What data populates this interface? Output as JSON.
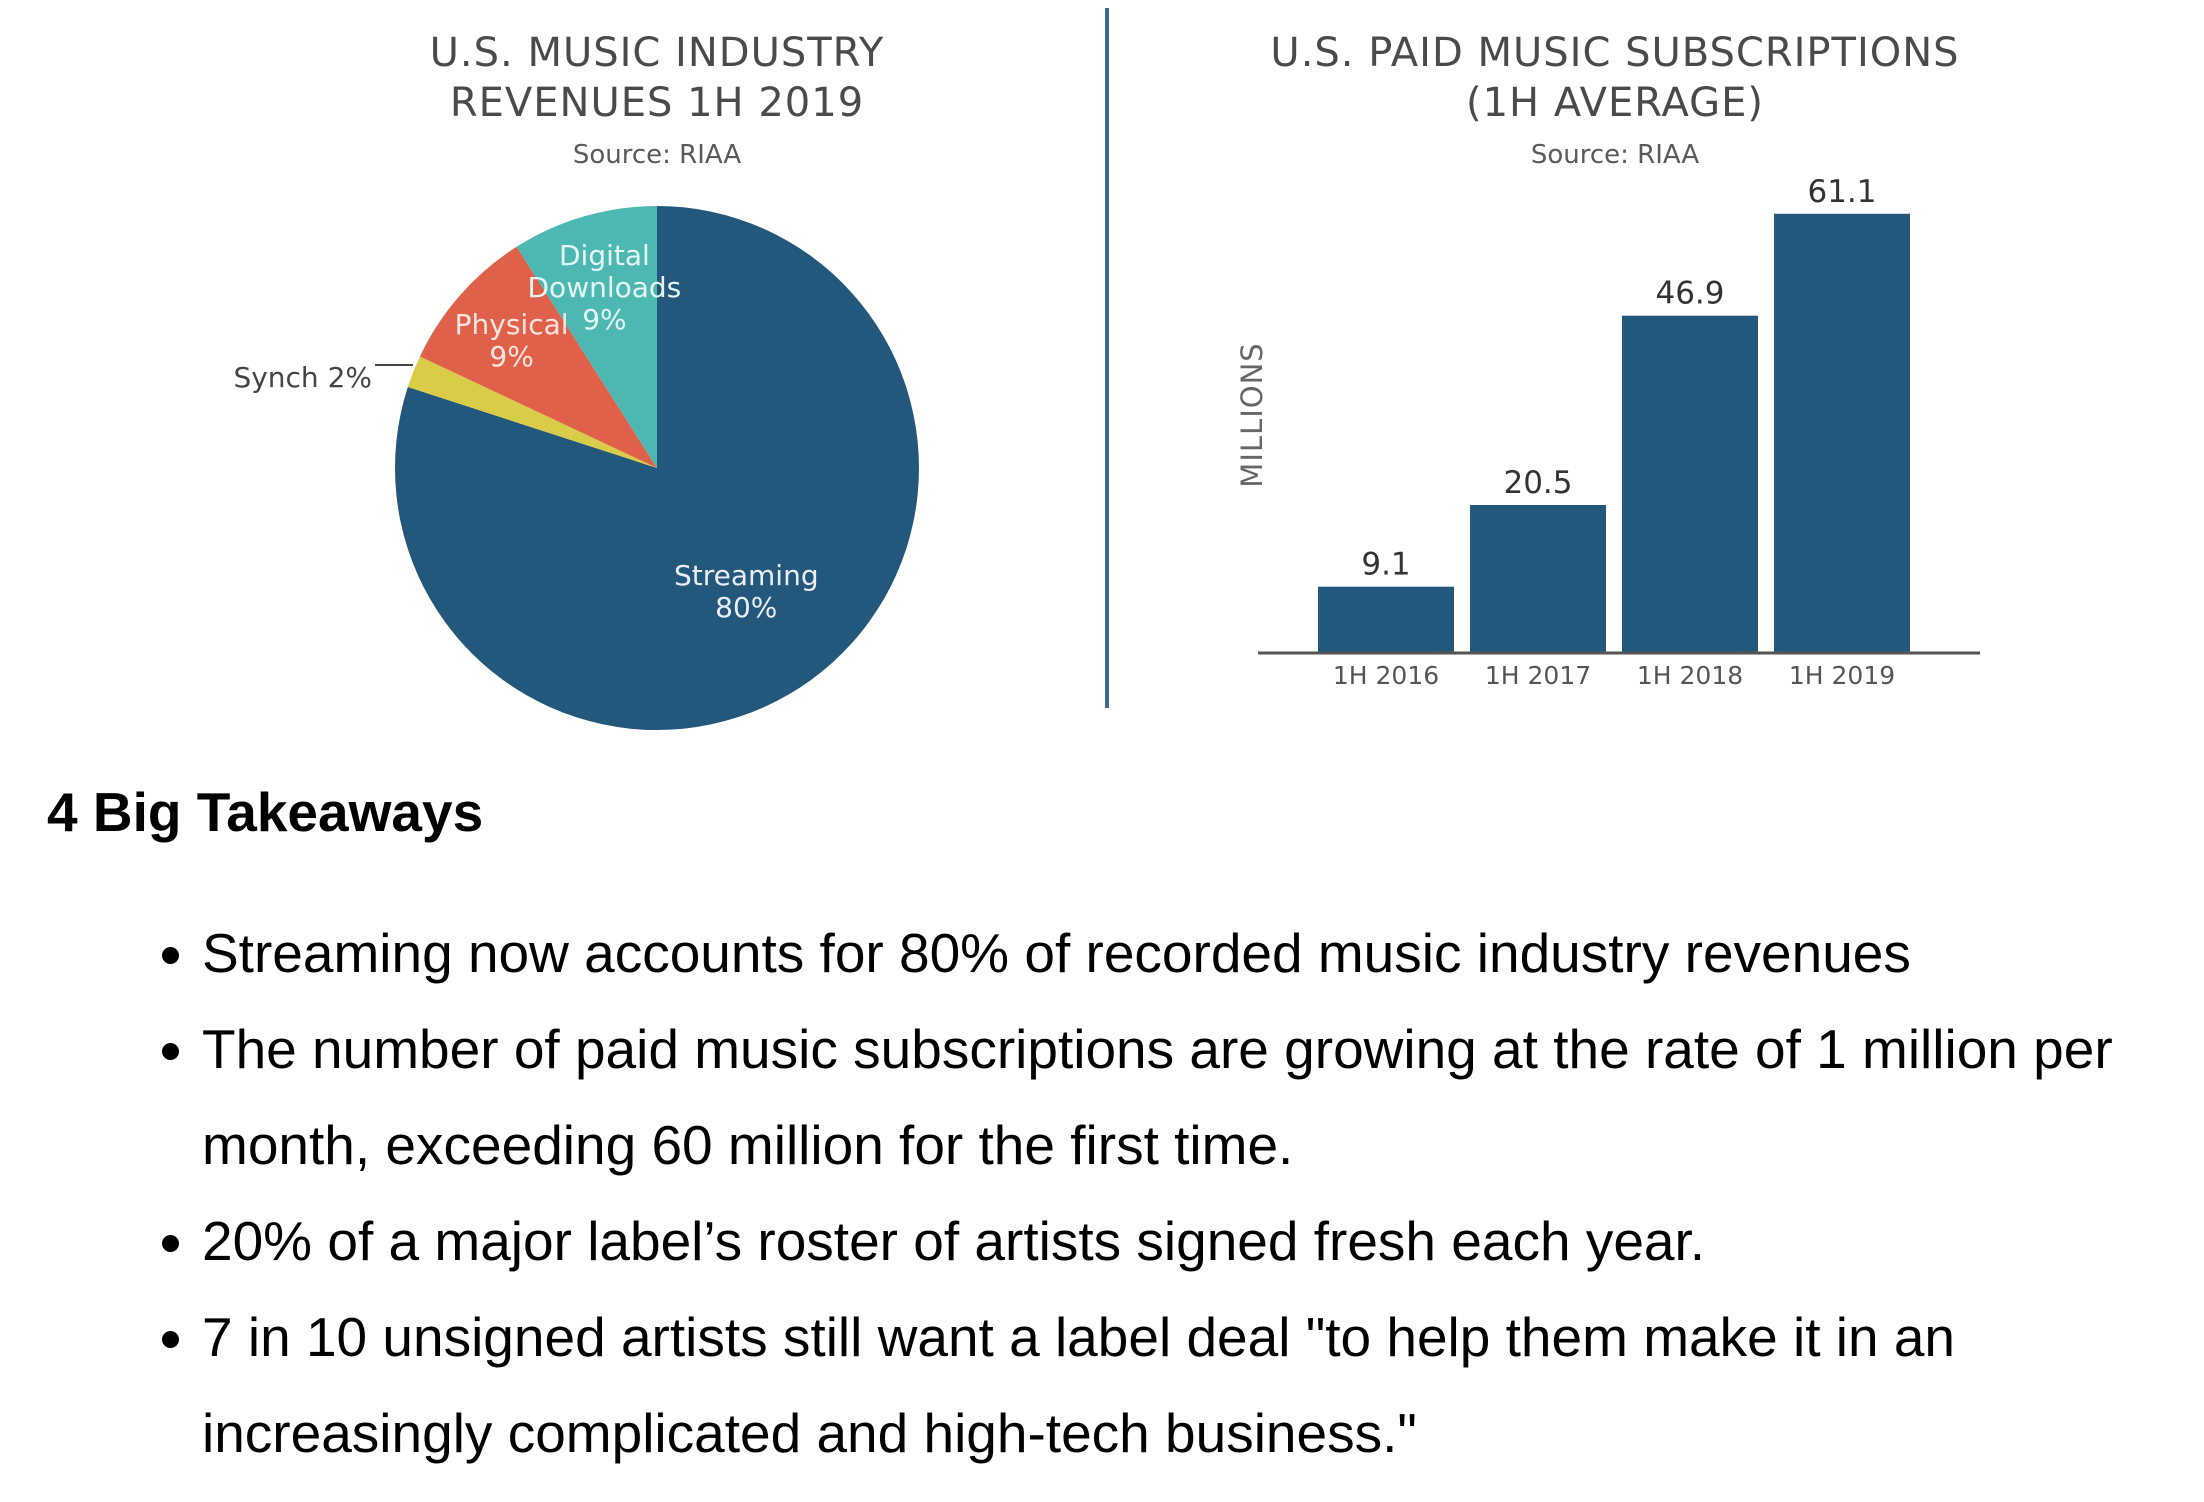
{
  "chart_data": [
    {
      "type": "pie",
      "title": [
        "U.S. MUSIC INDUSTRY",
        "REVENUES 1H 2019"
      ],
      "source": "Source: RIAA",
      "slices": [
        {
          "label": "Streaming",
          "value_text": "80%",
          "value": 80,
          "color": "#23577b",
          "text_color": "#e8eef3"
        },
        {
          "label": "Synch",
          "value_text": "2%",
          "value": 2,
          "color": "#d9cc48",
          "text_color": "#444444"
        },
        {
          "label": "Physical",
          "value_text": "9%",
          "value": 9,
          "color": "#e0614a",
          "text_color": "#fde4de"
        },
        {
          "label": "Digital Downloads",
          "label_lines": [
            "Digital",
            "Downloads"
          ],
          "value_text": "9%",
          "value": 9,
          "color": "#4db8b1",
          "text_color": "#e3f6f4"
        }
      ],
      "synch_label": "Synch 2%"
    },
    {
      "type": "bar",
      "title": [
        "U.S. PAID MUSIC SUBSCRIPTIONS",
        "(1H AVERAGE)"
      ],
      "source": "Source: RIAA",
      "categories": [
        "1H 2016",
        "1H 2017",
        "1H 2018",
        "1H 2019"
      ],
      "values": [
        9.1,
        20.5,
        46.9,
        61.1
      ],
      "value_labels": [
        "9.1",
        "20.5",
        "46.9",
        "61.1"
      ],
      "ylabel": "MILLIONS",
      "ylim": [
        0,
        70
      ],
      "bar_color": "#23577b",
      "grid": false
    }
  ],
  "divider_color": "#3c6a8c",
  "takeaways": {
    "heading": "4 Big Takeaways",
    "items": [
      "Streaming now accounts for 80% of recorded music industry revenues",
      "The number of paid music subscriptions are growing at the rate of 1 million per month, exceeding 60 million for the first time.",
      "20% of a major label’s roster of artists signed fresh each year.",
      "7 in 10 unsigned artists still want a label deal \"to help them make it in an increasingly complicated and high-tech business.\""
    ]
  }
}
